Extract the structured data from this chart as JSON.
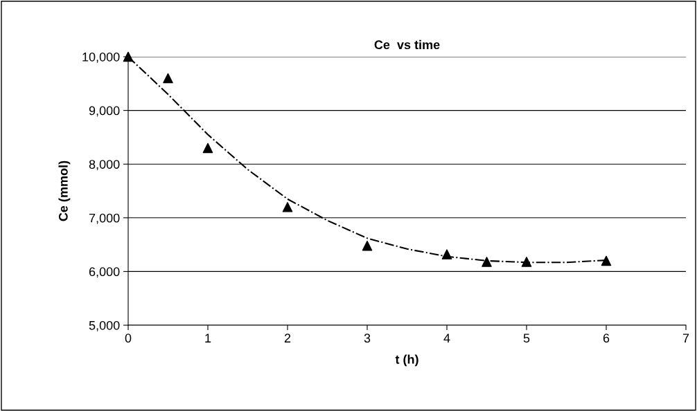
{
  "chart_data": {
    "type": "scatter",
    "title": "Ce  vs time",
    "xlabel": "t (h)",
    "ylabel": "Ce (mmol)",
    "x": [
      0,
      0.5,
      1,
      2,
      3,
      4,
      4.5,
      5,
      6
    ],
    "series": [
      {
        "color": "#000000",
        "marker": "triangle",
        "values": [
          10000,
          9600,
          8300,
          7200,
          6480,
          6320,
          6180,
          6180,
          6200
        ]
      },
      {
        "type": "line",
        "color": "#000000",
        "marker": "none",
        "line_style": "dashdot",
        "x": [
          0,
          0.5,
          1,
          1.5,
          2,
          2.5,
          3,
          3.5,
          4,
          4.5,
          5,
          5.5,
          6
        ],
        "values": [
          10000,
          9300,
          8550,
          7900,
          7350,
          6950,
          6620,
          6420,
          6280,
          6200,
          6170,
          6170,
          6210
        ]
      }
    ],
    "xlim": [
      0,
      7
    ],
    "xticks": [
      0,
      1,
      2,
      3,
      4,
      5,
      6,
      7
    ],
    "ylim": [
      5000,
      10000
    ],
    "yticks": [
      {
        "value": 5000,
        "label": "5,000"
      },
      {
        "value": 6000,
        "label": "6,000"
      },
      {
        "value": 7000,
        "label": "7,000"
      },
      {
        "value": 8000,
        "label": "8,000"
      },
      {
        "value": 9000,
        "label": "9,000"
      },
      {
        "value": 10000,
        "label": "10,000"
      }
    ],
    "grid": "y"
  }
}
